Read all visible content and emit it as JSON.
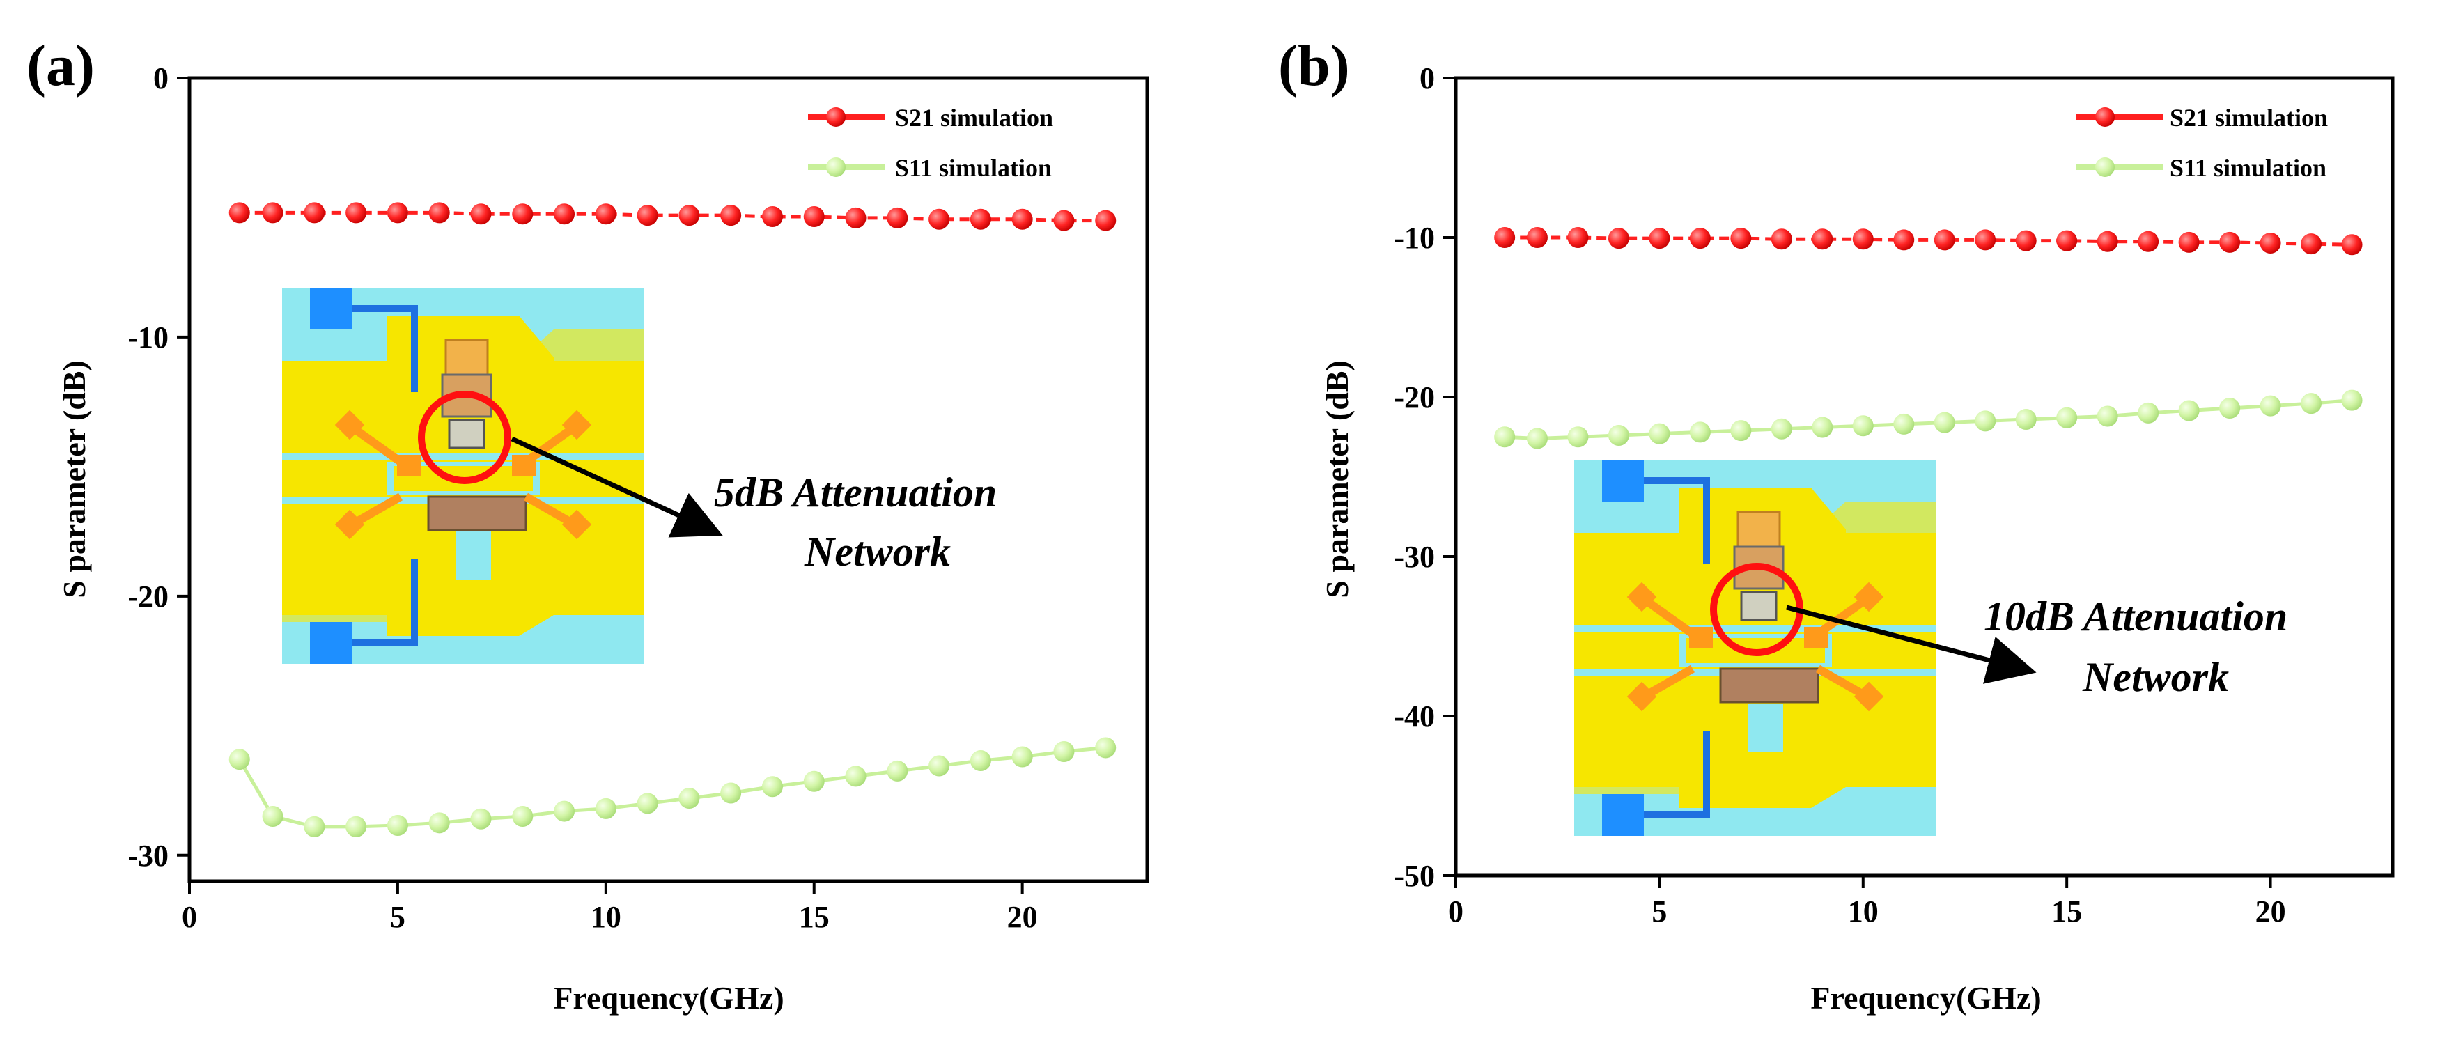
{
  "chart_data": [
    {
      "panel_label": "(a)",
      "type": "line",
      "xlabel": "Frequency(GHz)",
      "ylabel": "S parameter (dB)",
      "xlim": [
        0,
        23
      ],
      "ylim": [
        -31,
        0
      ],
      "xticks": [
        0,
        5,
        10,
        15,
        20
      ],
      "yticks": [
        0,
        -10,
        -20,
        -30
      ],
      "legend_position": "top-right",
      "annotation_lines": [
        "5dB Attenuation",
        "Network"
      ],
      "x": [
        1.2,
        2,
        3,
        4,
        5,
        6,
        7,
        8,
        9,
        10,
        11,
        12,
        13,
        14,
        15,
        16,
        17,
        18,
        19,
        20,
        21,
        22
      ],
      "series": [
        {
          "name": "S21 simulation",
          "color": "#ff2020",
          "values": [
            -5.2,
            -5.2,
            -5.2,
            -5.2,
            -5.2,
            -5.2,
            -5.25,
            -5.25,
            -5.25,
            -5.25,
            -5.3,
            -5.3,
            -5.3,
            -5.35,
            -5.35,
            -5.4,
            -5.4,
            -5.45,
            -5.45,
            -5.45,
            -5.5,
            -5.5
          ]
        },
        {
          "name": "S11 simulation",
          "color": "#c8f09a",
          "values": [
            -26.3,
            -28.5,
            -28.9,
            -28.9,
            -28.85,
            -28.75,
            -28.6,
            -28.5,
            -28.3,
            -28.2,
            -28.0,
            -27.8,
            -27.6,
            -27.35,
            -27.15,
            -26.95,
            -26.75,
            -26.55,
            -26.35,
            -26.2,
            -26.0,
            -25.85
          ]
        }
      ]
    },
    {
      "panel_label": "(b)",
      "type": "line",
      "xlabel": "Frequency(GHz)",
      "ylabel": "S parameter (dB)",
      "xlim": [
        0,
        23
      ],
      "ylim": [
        -50,
        0
      ],
      "xticks": [
        0,
        5,
        10,
        15,
        20
      ],
      "yticks": [
        0,
        -10,
        -20,
        -30,
        -40,
        -50
      ],
      "legend_position": "top-right",
      "annotation_lines": [
        "10dB Attenuation",
        "Network"
      ],
      "x": [
        1.2,
        2,
        3,
        4,
        5,
        6,
        7,
        8,
        9,
        10,
        11,
        12,
        13,
        14,
        15,
        16,
        17,
        18,
        19,
        20,
        21,
        22
      ],
      "series": [
        {
          "name": "S21 simulation",
          "color": "#ff2020",
          "values": [
            -10.0,
            -10.0,
            -10.0,
            -10.05,
            -10.05,
            -10.05,
            -10.05,
            -10.1,
            -10.1,
            -10.1,
            -10.15,
            -10.15,
            -10.15,
            -10.2,
            -10.2,
            -10.25,
            -10.25,
            -10.3,
            -10.3,
            -10.35,
            -10.4,
            -10.45
          ]
        },
        {
          "name": "S11 simulation",
          "color": "#c8f09a",
          "values": [
            -22.5,
            -22.6,
            -22.5,
            -22.4,
            -22.3,
            -22.2,
            -22.1,
            -22.0,
            -21.9,
            -21.8,
            -21.7,
            -21.6,
            -21.5,
            -21.4,
            -21.3,
            -21.2,
            -21.0,
            -20.85,
            -20.7,
            -20.55,
            -20.4,
            -20.2
          ]
        }
      ]
    }
  ]
}
